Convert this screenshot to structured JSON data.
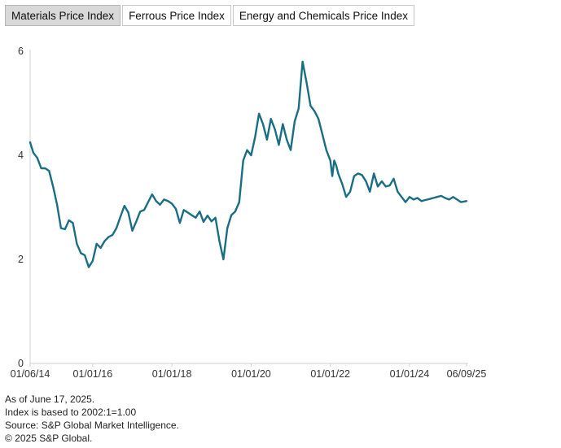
{
  "tabs": [
    {
      "label": "Materials Price Index",
      "active": true
    },
    {
      "label": "Ferrous Price Index",
      "active": false
    },
    {
      "label": "Energy and Chemicals Price Index",
      "active": false
    }
  ],
  "colors": {
    "line": "#1a6e84",
    "axis": "#cfcfcf",
    "active_tab": "#d9d9d9"
  },
  "chart_data": {
    "type": "line",
    "title": "Materials Price Index",
    "xlabel": "",
    "ylabel": "",
    "ylim": [
      0,
      6
    ],
    "yticks": [
      0,
      2,
      4,
      6
    ],
    "xlim": [
      2014.42,
      2025.44
    ],
    "xticks": [
      {
        "x": 2014.42,
        "label": "01/06/14"
      },
      {
        "x": 2016.0,
        "label": "01/01/16"
      },
      {
        "x": 2018.0,
        "label": "01/01/18"
      },
      {
        "x": 2020.0,
        "label": "01/01/20"
      },
      {
        "x": 2022.0,
        "label": "01/01/22"
      },
      {
        "x": 2024.0,
        "label": "01/01/24"
      },
      {
        "x": 2025.44,
        "label": "06/09/25"
      }
    ],
    "grid": false,
    "series": [
      {
        "name": "Materials Price Index",
        "x": [
          2014.42,
          2014.5,
          2014.6,
          2014.7,
          2014.8,
          2014.9,
          2015.0,
          2015.1,
          2015.2,
          2015.3,
          2015.4,
          2015.5,
          2015.6,
          2015.7,
          2015.8,
          2015.9,
          2016.0,
          2016.1,
          2016.2,
          2016.3,
          2016.4,
          2016.5,
          2016.6,
          2016.7,
          2016.8,
          2016.9,
          2017.0,
          2017.1,
          2017.2,
          2017.3,
          2017.4,
          2017.5,
          2017.6,
          2017.7,
          2017.8,
          2017.9,
          2018.0,
          2018.1,
          2018.2,
          2018.3,
          2018.4,
          2018.5,
          2018.6,
          2018.7,
          2018.8,
          2018.9,
          2019.0,
          2019.1,
          2019.2,
          2019.3,
          2019.4,
          2019.5,
          2019.6,
          2019.7,
          2019.8,
          2019.9,
          2020.0,
          2020.1,
          2020.2,
          2020.3,
          2020.4,
          2020.5,
          2020.6,
          2020.7,
          2020.8,
          2020.9,
          2021.0,
          2021.1,
          2021.2,
          2021.3,
          2021.4,
          2021.5,
          2021.6,
          2021.7,
          2021.8,
          2021.9,
          2022.0,
          2022.05,
          2022.1,
          2022.15,
          2022.2,
          2022.3,
          2022.4,
          2022.5,
          2022.6,
          2022.7,
          2022.8,
          2022.9,
          2023.0,
          2023.1,
          2023.2,
          2023.3,
          2023.4,
          2023.5,
          2023.6,
          2023.7,
          2023.8,
          2023.9,
          2024.0,
          2024.1,
          2024.2,
          2024.3,
          2024.4,
          2024.5,
          2024.6,
          2024.7,
          2024.8,
          2024.9,
          2025.0,
          2025.1,
          2025.2,
          2025.3,
          2025.44
        ],
        "values": [
          4.25,
          4.05,
          3.95,
          3.75,
          3.75,
          3.7,
          3.4,
          3.05,
          2.6,
          2.58,
          2.75,
          2.7,
          2.3,
          2.12,
          2.08,
          1.85,
          1.97,
          2.3,
          2.22,
          2.35,
          2.43,
          2.47,
          2.6,
          2.82,
          3.03,
          2.9,
          2.55,
          2.73,
          2.92,
          2.95,
          3.1,
          3.25,
          3.12,
          3.05,
          3.15,
          3.12,
          3.07,
          2.97,
          2.7,
          2.95,
          2.9,
          2.85,
          2.8,
          2.92,
          2.72,
          2.84,
          2.73,
          2.8,
          2.35,
          2.0,
          2.6,
          2.85,
          2.92,
          3.1,
          3.9,
          4.1,
          4.0,
          4.35,
          4.8,
          4.6,
          4.3,
          4.7,
          4.5,
          4.2,
          4.6,
          4.3,
          4.1,
          4.65,
          4.9,
          5.8,
          5.4,
          4.95,
          4.85,
          4.7,
          4.4,
          4.1,
          3.9,
          3.6,
          3.9,
          3.8,
          3.65,
          3.45,
          3.2,
          3.3,
          3.6,
          3.65,
          3.62,
          3.5,
          3.3,
          3.65,
          3.4,
          3.5,
          3.4,
          3.42,
          3.55,
          3.3,
          3.2,
          3.1,
          3.2,
          3.15,
          3.18,
          3.12,
          3.14,
          3.16,
          3.18,
          3.2,
          3.22,
          3.18,
          3.15,
          3.2,
          3.15,
          3.1,
          3.12
        ]
      }
    ]
  },
  "footer": {
    "line1": "As of June 17, 2025.",
    "line2": "Index is based to 2002:1=1.00",
    "line3": "Source: S&P Global Market Intelligence.",
    "line4": "© 2025 S&P Global."
  }
}
